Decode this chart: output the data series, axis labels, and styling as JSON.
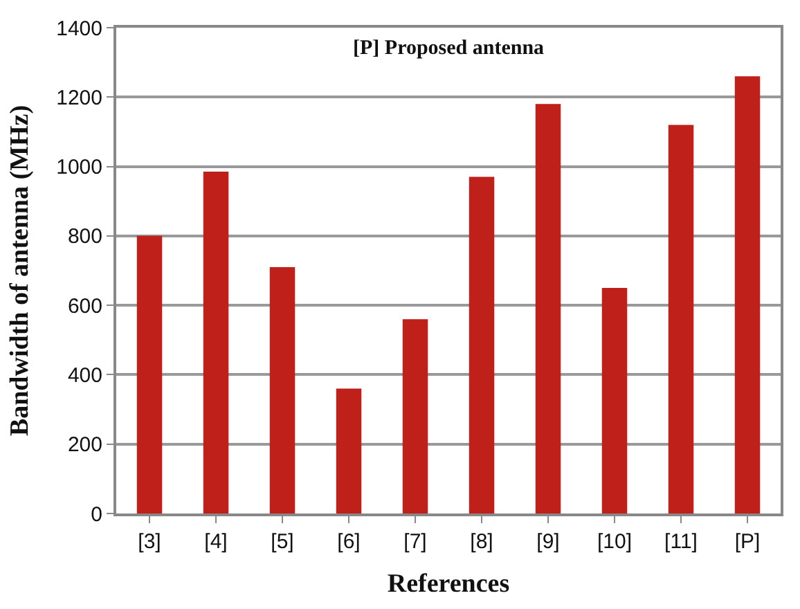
{
  "chart_data": {
    "type": "bar",
    "xlabel": "References",
    "ylabel": "Bandwidth of antenna (MHz)",
    "annotations": [
      "[P] Proposed antenna"
    ],
    "categories": [
      "[3]",
      "[4]",
      "[5]",
      "[6]",
      "[7]",
      "[8]",
      "[9]",
      "[10]",
      "[11]",
      "[P]"
    ],
    "values": [
      800,
      985,
      710,
      360,
      560,
      970,
      1180,
      650,
      1120,
      1260
    ],
    "color": "#c0201a",
    "ylim": [
      0,
      1400
    ],
    "yticks": [
      0,
      200,
      400,
      600,
      800,
      1000,
      1200,
      1400
    ],
    "grid": "y"
  }
}
